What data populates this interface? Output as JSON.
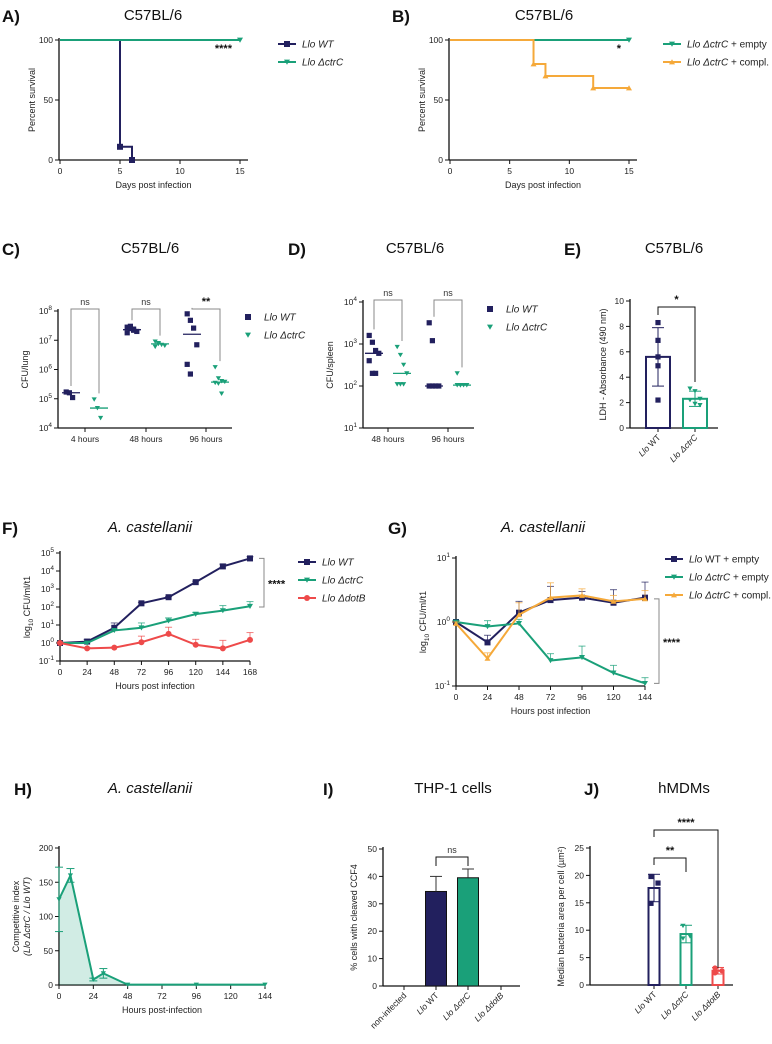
{
  "colors": {
    "wt": "#22205e",
    "ctrC": "#1aa079",
    "dotB": "#ee4a4a",
    "compl": "#f5a93a",
    "bracket": "#888888",
    "axis": "#111111"
  },
  "chart_data": [
    {
      "id": "A",
      "panel": "A)",
      "type": "line",
      "subtype": "survival-step",
      "title": "C57BL/6",
      "xlabel": "Days post infection",
      "ylabel": "Percent survival",
      "xlim": [
        0,
        15
      ],
      "ylim": [
        0,
        100
      ],
      "xticks": [
        "0",
        "5",
        "10",
        "15"
      ],
      "yticks": [
        "0",
        "50",
        "100"
      ],
      "series": [
        {
          "name": "Llo WT",
          "color_key": "wt",
          "marker": "square",
          "x": [
            0,
            5,
            5,
            6,
            6
          ],
          "y": [
            100,
            100,
            11,
            11,
            0
          ]
        },
        {
          "name": "Llo ΔctrC",
          "color_key": "ctrC",
          "marker": "triangle-down",
          "x": [
            0,
            15
          ],
          "y": [
            100,
            100
          ]
        }
      ],
      "annotations": [
        {
          "text": "****",
          "x": 15,
          "y": 94
        }
      ],
      "legend": "right"
    },
    {
      "id": "B",
      "panel": "B)",
      "type": "line",
      "subtype": "survival-step",
      "title": "C57BL/6",
      "xlabel": "Days post infection",
      "ylabel": "Percent survival",
      "xlim": [
        0,
        15
      ],
      "ylim": [
        0,
        100
      ],
      "xticks": [
        "0",
        "5",
        "10",
        "15"
      ],
      "yticks": [
        "0",
        "50",
        "100"
      ],
      "series": [
        {
          "name": "Llo ΔctrC + empty",
          "color_key": "ctrC",
          "marker": "triangle-down",
          "x": [
            0,
            15
          ],
          "y": [
            100,
            100
          ]
        },
        {
          "name": "Llo ΔctrC + compl.",
          "color_key": "compl",
          "marker": "triangle-up",
          "x": [
            0,
            7,
            7,
            8,
            8,
            12,
            12,
            15
          ],
          "y": [
            100,
            100,
            80,
            80,
            70,
            70,
            60,
            60
          ]
        }
      ],
      "annotations": [
        {
          "text": "*",
          "x": 15,
          "y": 94
        }
      ],
      "legend": "right"
    },
    {
      "id": "C",
      "panel": "C)",
      "type": "scatter",
      "subtype": "dot-plot-log",
      "title": "C57BL/6",
      "xlabel": "",
      "ylabel": "CFU/lung",
      "yscale": "log",
      "ylim": [
        10000,
        100000000
      ],
      "yticks": [
        "10^4",
        "10^5",
        "10^6",
        "10^7",
        "10^8"
      ],
      "categories": [
        "4 hours",
        "48 hours",
        "96 hours"
      ],
      "series": [
        {
          "name": "Llo WT",
          "color_key": "wt",
          "marker": "square",
          "values": [
            [
              170000,
              160000,
              110000
            ],
            [
              28000000,
              25000000,
              22000000,
              20000000,
              18000000,
              30000000,
              24000000
            ],
            [
              80000000,
              48000000,
              26000000,
              7000000,
              1500000,
              700000
            ]
          ],
          "medians": [
            160000,
            23000000,
            16000000
          ]
        },
        {
          "name": "Llo ΔctrC",
          "color_key": "ctrC",
          "marker": "triangle-down",
          "values": [
            [
              95000,
              48000,
              22000
            ],
            [
              9000000,
              8000000,
              7000000,
              6500000,
              6000000,
              7500000
            ],
            [
              1200000,
              500000,
              400000,
              380000,
              350000,
              330000,
              150000
            ]
          ],
          "medians": [
            48000,
            7500000,
            370000
          ]
        }
      ],
      "comparisons": [
        {
          "category": "4 hours",
          "label": "ns"
        },
        {
          "category": "48 hours",
          "label": "ns"
        },
        {
          "category": "96 hours",
          "label": "**"
        }
      ],
      "legend": "right"
    },
    {
      "id": "D",
      "panel": "D)",
      "type": "scatter",
      "subtype": "dot-plot-log",
      "title": "C57BL/6",
      "xlabel": "",
      "ylabel": "CFU/spleen",
      "yscale": "log",
      "ylim": [
        10,
        10000
      ],
      "yticks": [
        "10^1",
        "10^2",
        "10^3",
        "10^4"
      ],
      "categories": [
        "48 hours",
        "96 hours"
      ],
      "series": [
        {
          "name": "Llo WT",
          "color_key": "wt",
          "marker": "square",
          "values": [
            [
              1600,
              1100,
              700,
              600,
              400,
              200,
              200
            ],
            [
              3200,
              1200,
              100,
              100,
              100,
              100
            ]
          ],
          "medians": [
            600,
            100
          ]
        },
        {
          "name": "Llo ΔctrC",
          "color_key": "ctrC",
          "marker": "triangle-down",
          "values": [
            [
              850,
              550,
              320,
              200,
              110,
              110,
              110
            ],
            [
              200,
              105,
              105,
              105,
              105,
              105
            ]
          ],
          "medians": [
            200,
            105
          ]
        }
      ],
      "comparisons": [
        {
          "category": "48 hours",
          "label": "ns"
        },
        {
          "category": "96 hours",
          "label": "ns"
        }
      ],
      "legend": "right"
    },
    {
      "id": "E",
      "panel": "E)",
      "type": "bar",
      "title": "C57BL/6",
      "xlabel": "",
      "ylabel": "LDH - Absorbance (490 nm)",
      "ylim": [
        0,
        10
      ],
      "yticks": [
        "0",
        "2",
        "4",
        "6",
        "8",
        "10"
      ],
      "categories": [
        "Llo WT",
        "Llo ΔctrC"
      ],
      "bar_style": "outline",
      "series": [
        {
          "name": "LDH",
          "values": [
            5.6,
            2.3
          ],
          "errors": [
            2.3,
            0.6
          ],
          "color_keys": [
            "wt",
            "ctrC"
          ],
          "points": [
            [
              8.3,
              6.9,
              5.6,
              4.9,
              2.2
            ],
            [
              3.1,
              2.9,
              2.3,
              2.2,
              1.9,
              1.8
            ]
          ]
        }
      ],
      "comparisons": [
        {
          "from": 0,
          "to": 1,
          "label": "*"
        }
      ]
    },
    {
      "id": "F",
      "panel": "F)",
      "type": "line",
      "subtype": "log-growth",
      "title": "A. castellanii",
      "xlabel": "Hours post infection",
      "ylabel": "log10 CFU/ml/t1",
      "yscale": "log",
      "ylim": [
        0.1,
        100000
      ],
      "xlim": [
        0,
        168
      ],
      "xticks": [
        "0",
        "24",
        "48",
        "72",
        "96",
        "120",
        "144",
        "168"
      ],
      "yticks": [
        "10^-1",
        "10^0",
        "10^1",
        "10^2",
        "10^3",
        "10^4",
        "10^5"
      ],
      "x": [
        0,
        24,
        48,
        72,
        96,
        120,
        144,
        168
      ],
      "series": [
        {
          "name": "Llo WT",
          "color_key": "wt",
          "marker": "square",
          "values": [
            1,
            1.2,
            7,
            160,
            350,
            2400,
            18000,
            50000
          ],
          "errors_upper": [
            1.1,
            1.6,
            13,
            180,
            380,
            2700,
            24000,
            62000
          ]
        },
        {
          "name": "Llo ΔctrC",
          "color_key": "ctrC",
          "marker": "triangle-down",
          "values": [
            1,
            1,
            5,
            7,
            17,
            40,
            63,
            110
          ],
          "errors_upper": [
            1.1,
            1.2,
            5.5,
            13,
            25,
            50,
            120,
            200
          ]
        },
        {
          "name": "Llo ΔdotB",
          "color_key": "dotB",
          "marker": "circle",
          "values": [
            1,
            0.5,
            0.55,
            1.1,
            3.2,
            0.8,
            0.5,
            1.5
          ],
          "errors_upper": [
            1.1,
            0.55,
            0.6,
            2.4,
            7.5,
            1.6,
            1.4,
            3.8
          ]
        }
      ],
      "annotations": [
        {
          "text": "****",
          "bracket": [
            100,
            50000
          ]
        }
      ],
      "legend": "right"
    },
    {
      "id": "G",
      "panel": "G)",
      "type": "line",
      "subtype": "log-growth",
      "title": "A. castellanii",
      "xlabel": "Hours post infection",
      "ylabel": "log10 CFU/ml/t1",
      "yscale": "log",
      "ylim": [
        0.1,
        10
      ],
      "xlim": [
        0,
        144
      ],
      "xticks": [
        "0",
        "24",
        "48",
        "72",
        "96",
        "120",
        "144"
      ],
      "yticks": [
        "10^-1",
        "10^0",
        "10^1"
      ],
      "x": [
        0,
        24,
        48,
        72,
        96,
        120,
        144
      ],
      "series": [
        {
          "name": "Llo WT + empty",
          "color_key": "wt",
          "marker": "square",
          "values": [
            1,
            0.48,
            1.4,
            2.2,
            2.4,
            2.0,
            2.4
          ],
          "errors_upper": [
            1.05,
            0.62,
            2.1,
            3.6,
            3.0,
            3.2,
            4.2
          ]
        },
        {
          "name": "Llo ΔctrC + empty",
          "color_key": "ctrC",
          "marker": "triangle-down",
          "values": [
            1,
            0.85,
            0.95,
            0.25,
            0.28,
            0.16,
            0.11
          ],
          "errors_upper": [
            1.05,
            1.05,
            1.1,
            0.32,
            0.42,
            0.21,
            0.135
          ]
        },
        {
          "name": "Llo ΔctrC + compl.",
          "color_key": "compl",
          "marker": "triangle-up",
          "values": [
            0.95,
            0.27,
            1.3,
            2.4,
            2.6,
            2.1,
            2.3
          ],
          "errors_upper": [
            1.0,
            0.33,
            2.0,
            4.1,
            3.3,
            2.6,
            3.1
          ]
        }
      ],
      "annotations": [
        {
          "text": "****",
          "bracket": [
            0.11,
            2.3
          ]
        }
      ],
      "legend": "right"
    },
    {
      "id": "H",
      "panel": "H)",
      "type": "area",
      "title": "A. castellanii",
      "xlabel": "Hours post-infection",
      "ylabel": "Competitive index",
      "ylabel2": "(Llo ΔctrC / Llo WT)",
      "ylim": [
        0,
        200
      ],
      "xlim": [
        0,
        144
      ],
      "xticks": [
        "0",
        "24",
        "48",
        "72",
        "96",
        "120",
        "144"
      ],
      "yticks": [
        "0",
        "50",
        "100",
        "150",
        "200"
      ],
      "series": [
        {
          "name": "Competitive index",
          "color_key": "ctrC",
          "x": [
            0,
            8,
            24,
            31,
            48,
            96,
            144
          ],
          "values": [
            125,
            160,
            8,
            17,
            0.5,
            0.5,
            0.5
          ],
          "errors": [
            47,
            10,
            2,
            7,
            0.5,
            0.5,
            0.5
          ]
        }
      ]
    },
    {
      "id": "I",
      "panel": "I)",
      "type": "bar",
      "title": "THP-1 cells",
      "xlabel": "",
      "ylabel": "% cells with cleaved CCF4",
      "ylim": [
        0,
        50
      ],
      "yticks": [
        "0",
        "10",
        "20",
        "30",
        "40",
        "50"
      ],
      "categories": [
        "non-infected",
        "Llo WT",
        "Llo ΔctrC",
        "Llo ΔdotB"
      ],
      "bar_style": "filled",
      "series": [
        {
          "name": "% cleaved CCF4",
          "values": [
            0,
            34.5,
            39.5,
            0
          ],
          "errors": [
            0,
            5.5,
            3.2,
            0
          ],
          "color_keys": [
            "wt",
            "wt",
            "ctrC",
            "dotB"
          ]
        }
      ],
      "comparisons": [
        {
          "from": 1,
          "to": 2,
          "label": "ns"
        }
      ]
    },
    {
      "id": "J",
      "panel": "J)",
      "type": "bar",
      "title": "hMDMs",
      "xlabel": "",
      "ylabel": "Median bacteria area per cell (µm²)",
      "ylim": [
        0,
        25
      ],
      "yticks": [
        "0",
        "5",
        "10",
        "15",
        "20",
        "25"
      ],
      "categories": [
        "Llo WT",
        "Llo ΔctrC",
        "Llo ΔdotB"
      ],
      "bar_style": "outline",
      "series": [
        {
          "name": "Median area",
          "values": [
            17.7,
            9.3,
            2.6
          ],
          "errors": [
            2.5,
            1.6,
            0.6
          ],
          "color_keys": [
            "wt",
            "ctrC",
            "dotB"
          ],
          "points": [
            [
              19.8,
              18.6,
              14.9
            ],
            [
              10.8,
              8.9,
              8.5
            ],
            [
              3.1,
              2.6,
              2.2
            ]
          ]
        }
      ],
      "comparisons": [
        {
          "from": 0,
          "to": 1,
          "label": "**"
        },
        {
          "from": 0,
          "to": 2,
          "label": "****"
        }
      ]
    }
  ]
}
